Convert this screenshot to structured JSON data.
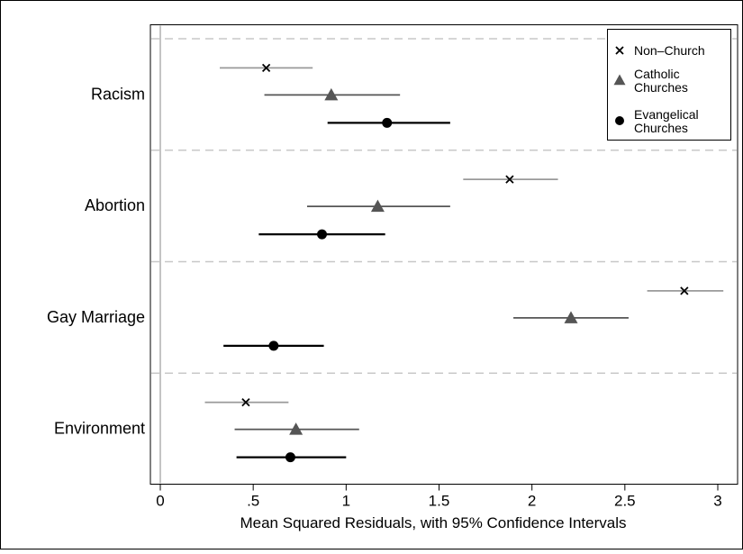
{
  "chart_data": {
    "type": "scatter",
    "title": "",
    "xlabel": "Mean Squared Residuals, with 95% Confidence Intervals",
    "ylabel": "",
    "xlim": [
      -0.04,
      3.07
    ],
    "xticks": [
      {
        "value": 0,
        "label": "0"
      },
      {
        "value": 0.5,
        "label": ".5"
      },
      {
        "value": 1,
        "label": "1"
      },
      {
        "value": 1.5,
        "label": "1.5"
      },
      {
        "value": 2,
        "label": "2"
      },
      {
        "value": 2.5,
        "label": "2.5"
      },
      {
        "value": 3,
        "label": "3"
      }
    ],
    "categories": [
      "Racism",
      "Abortion",
      "Gay Marriage",
      "Environment"
    ],
    "legend_position": "top-right",
    "grid": "dashed horizontal separators between categories",
    "series": [
      {
        "name": "Non–Church",
        "marker": "x",
        "color": "#9a9a9a",
        "marker_color": "#000000",
        "points": [
          {
            "category": "Racism",
            "value": 0.57,
            "ci": [
              0.32,
              0.82
            ]
          },
          {
            "category": "Abortion",
            "value": 1.88,
            "ci": [
              1.63,
              2.14
            ]
          },
          {
            "category": "Gay Marriage",
            "value": 2.82,
            "ci": [
              2.62,
              3.03
            ]
          },
          {
            "category": "Environment",
            "value": 0.46,
            "ci": [
              0.24,
              0.69
            ]
          }
        ]
      },
      {
        "name": "Catholic\nChurches",
        "marker": "triangle",
        "color": "#555555",
        "marker_color": "#555555",
        "points": [
          {
            "category": "Racism",
            "value": 0.92,
            "ci": [
              0.56,
              1.29
            ]
          },
          {
            "category": "Abortion",
            "value": 1.17,
            "ci": [
              0.79,
              1.56
            ]
          },
          {
            "category": "Gay Marriage",
            "value": 2.21,
            "ci": [
              1.9,
              2.52
            ]
          },
          {
            "category": "Environment",
            "value": 0.73,
            "ci": [
              0.4,
              1.07
            ]
          }
        ]
      },
      {
        "name": "Evangelical\nChurches",
        "marker": "circle",
        "color": "#000000",
        "marker_color": "#000000",
        "points": [
          {
            "category": "Racism",
            "value": 1.22,
            "ci": [
              0.9,
              1.56
            ]
          },
          {
            "category": "Abortion",
            "value": 0.87,
            "ci": [
              0.53,
              1.21
            ]
          },
          {
            "category": "Gay Marriage",
            "value": 0.61,
            "ci": [
              0.34,
              0.88
            ]
          },
          {
            "category": "Environment",
            "value": 0.7,
            "ci": [
              0.41,
              1.0
            ]
          }
        ]
      }
    ]
  }
}
